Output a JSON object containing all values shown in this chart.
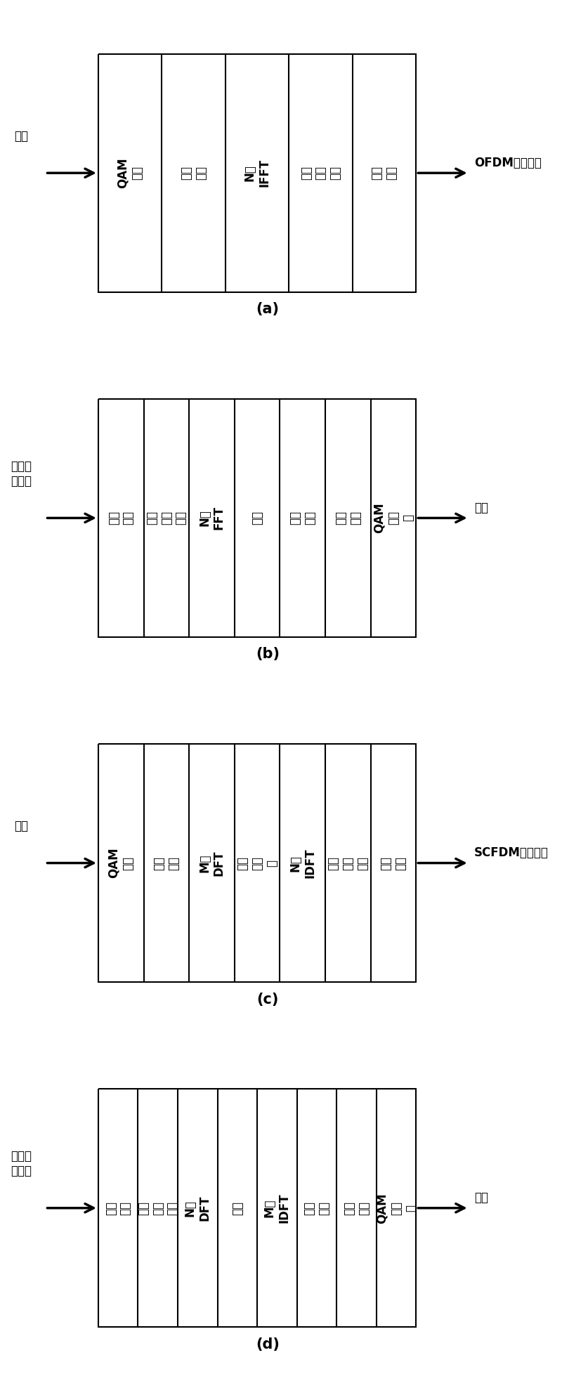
{
  "diagrams": [
    {
      "label": "(a)",
      "input_text": [
        "数据"
      ],
      "output_text": [
        "OFDM基带信号"
      ],
      "input_above_arrow": true,
      "output_right": true,
      "blocks": [
        [
          "QAM",
          "映射"
        ],
        [
          "串并",
          "转化"
        ],
        [
          "N点",
          "IFFT"
        ],
        [
          "添加",
          "循环",
          "前缀"
        ],
        [
          "并串",
          "转化"
        ]
      ]
    },
    {
      "label": "(b)",
      "input_text": [
        "接收到",
        "的信号"
      ],
      "output_text": [
        "数据"
      ],
      "input_above_arrow": true,
      "output_right": true,
      "blocks": [
        [
          "串并",
          "转化"
        ],
        [
          "去掉",
          "循环",
          "前缀"
        ],
        [
          "N点",
          "FFT"
        ],
        [
          "均衡"
        ],
        [
          "相位",
          "补偿"
        ],
        [
          "并串",
          "转化"
        ],
        [
          "QAM",
          "解映",
          "射"
        ]
      ]
    },
    {
      "label": "(c)",
      "input_text": [
        "数据"
      ],
      "output_text": [
        "SCFDM基带信号"
      ],
      "input_above_arrow": true,
      "output_right": true,
      "blocks": [
        [
          "QAM",
          "映射"
        ],
        [
          "串并",
          "转化"
        ],
        [
          "M点",
          "DFT"
        ],
        [
          "子载",
          "波映",
          "射"
        ],
        [
          "N点",
          "IDFT"
        ],
        [
          "添加",
          "循环",
          "前缀"
        ],
        [
          "并串",
          "转化"
        ]
      ]
    },
    {
      "label": "(d)",
      "input_text": [
        "接收到",
        "的信号"
      ],
      "output_text": [
        "数据"
      ],
      "input_above_arrow": true,
      "output_right": true,
      "blocks": [
        [
          "串并",
          "转化"
        ],
        [
          "去掉",
          "循环",
          "前缀"
        ],
        [
          "N点",
          "DFT"
        ],
        [
          "均衡"
        ],
        [
          "M点",
          "IDFT"
        ],
        [
          "相位",
          "补偿"
        ],
        [
          "并串",
          "转化"
        ],
        [
          "QAM",
          "解映",
          "射"
        ]
      ]
    }
  ],
  "background_color": "#ffffff",
  "box_edge_color": "#000000",
  "text_color": "#000000",
  "arrow_color": "#000000",
  "font_size": 12,
  "label_font_size": 15
}
